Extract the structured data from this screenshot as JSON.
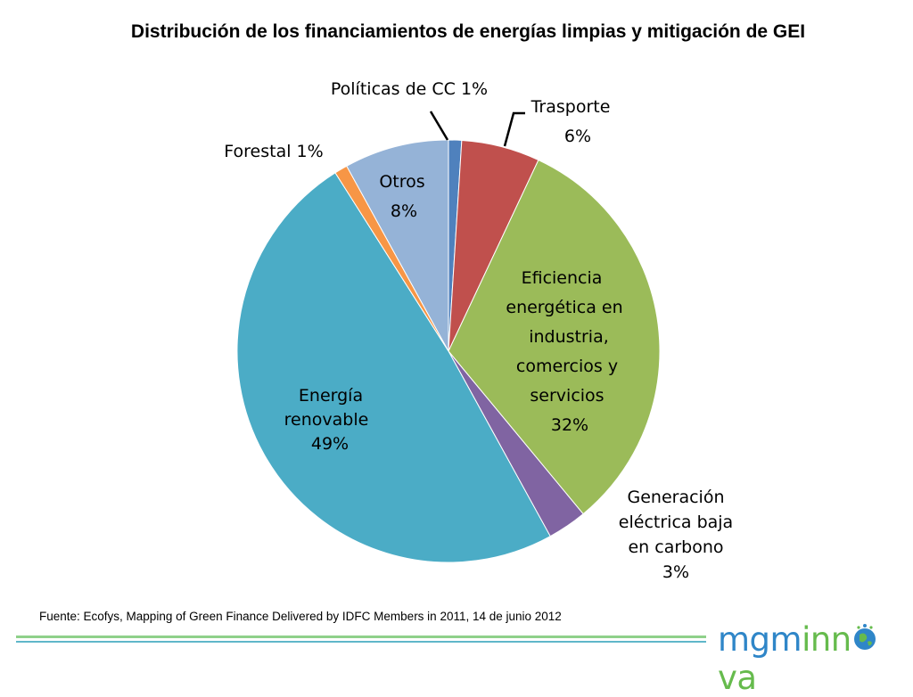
{
  "title": "Distribución de los financiamientos de energías limpias y mitigación de GEI",
  "chart_data": {
    "type": "pie",
    "title": "Distribución de los financiamientos de energías limpias y mitigación de GEI",
    "slices": [
      {
        "name": "Políticas de CC",
        "value": 1,
        "label_lines": [
          "Políticas de CC 1%"
        ],
        "color": "#4f81bd"
      },
      {
        "name": "Trasporte",
        "value": 6,
        "label_lines": [
          "Trasporte",
          "6%"
        ],
        "color": "#c0504d"
      },
      {
        "name": "Eficiencia energética en industria, comercios y servicios",
        "value": 32,
        "label_lines": [
          "Eficiencia",
          "energética en",
          "industria,",
          "comercios y",
          "servicios",
          "32%"
        ],
        "color": "#9bbb59"
      },
      {
        "name": "Generación eléctrica baja en carbono",
        "value": 3,
        "label_lines": [
          "Generación",
          "eléctrica baja",
          "en carbono",
          "3%"
        ],
        "color": "#8064a2"
      },
      {
        "name": "Energía renovable",
        "value": 49,
        "label_lines": [
          "Energía",
          "renovable",
          "49%"
        ],
        "color": "#4bacc6"
      },
      {
        "name": "Forestal",
        "value": 1,
        "label_lines": [
          "Forestal 1%"
        ],
        "color": "#f79646"
      },
      {
        "name": "Otros",
        "value": 8,
        "label_lines": [
          "Otros",
          "8%"
        ],
        "color": "#95b3d7"
      }
    ]
  },
  "source": "Fuente: Ecofys, Mapping of Green Finance Delivered by IDFC Members in 2011, 14 de junio 2012",
  "logo": {
    "part1": "mgm",
    "part2": "inn",
    "part3": "va"
  }
}
